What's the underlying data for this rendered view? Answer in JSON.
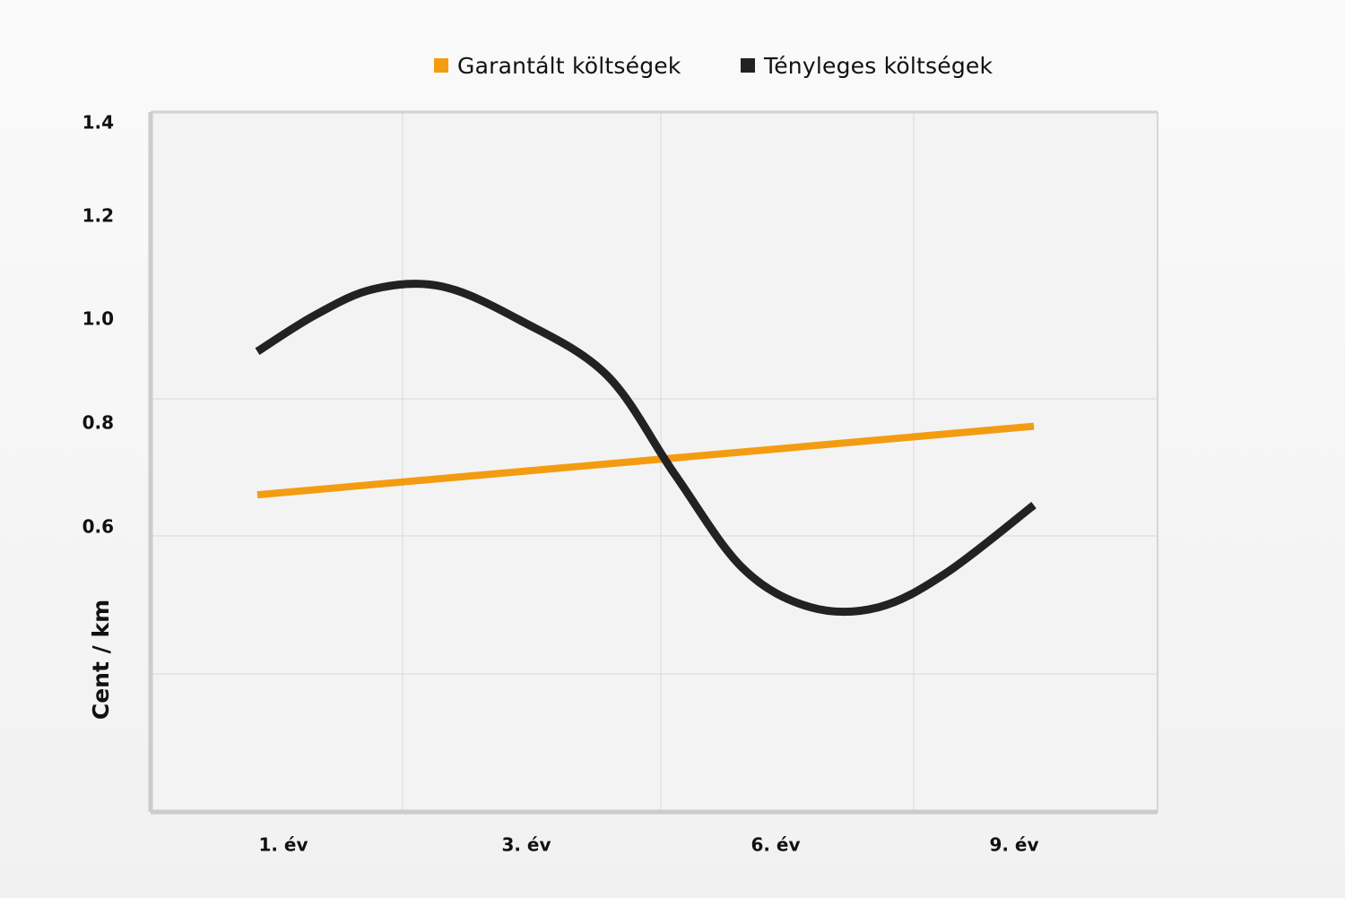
{
  "chart_data": {
    "type": "line",
    "title": "",
    "xlabel": "",
    "ylabel": "Cent / km",
    "y_ticks": [
      "1.4",
      "1.2",
      "1.0",
      "0.8",
      "0.6"
    ],
    "x_ticks": [
      "1. év",
      "3. év",
      "6. év",
      "9. év"
    ],
    "grid": true,
    "legend_position": "top-center",
    "series": [
      {
        "name": "Garantált költségek",
        "color": "#f39c12",
        "x": [
          1,
          9
        ],
        "y": [
          0.66,
          0.76
        ]
      },
      {
        "name": "Tényleges költségek",
        "color": "#222222",
        "x": [
          1,
          1.6,
          2.2,
          2.9,
          3.7,
          4.6,
          5.3,
          6.0,
          6.7,
          7.4,
          8.1,
          9
        ],
        "y": [
          0.92,
          1.01,
          1.06,
          1.065,
          1.0,
          0.86,
          0.69,
          0.53,
          0.445,
          0.445,
          0.52,
          0.645
        ]
      }
    ]
  }
}
